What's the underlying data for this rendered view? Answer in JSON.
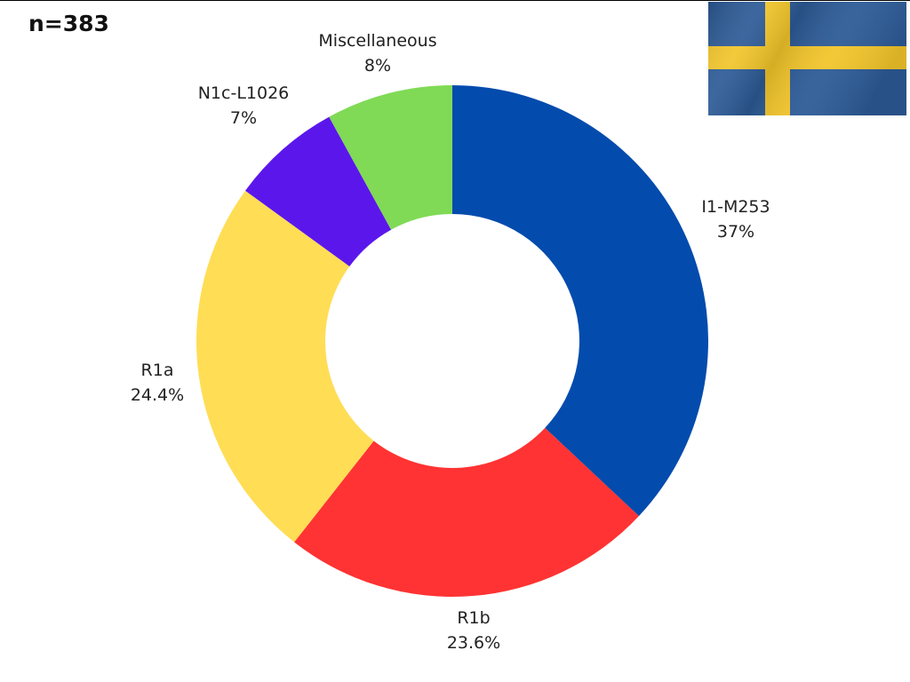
{
  "count_label": "n=383",
  "flag": {
    "name": "Sweden flag",
    "colors": {
      "blue": "#2c5a96",
      "yellow": "#f2c52a"
    }
  },
  "chart_data": {
    "type": "pie",
    "donut": true,
    "title": "",
    "start": "top",
    "direction": "clockwise",
    "categories": [
      "I1-M253",
      "R1b",
      "R1a",
      "N1c-L1026",
      "Miscellaneous"
    ],
    "values": [
      37,
      23.6,
      24.4,
      7,
      8
    ],
    "value_labels": [
      "37%",
      "23.6%",
      "24.4%",
      "7%",
      "8%"
    ],
    "colors": [
      "#034bad",
      "#ff3333",
      "#ffdd55",
      "#5b17eb",
      "#80da55"
    ]
  }
}
